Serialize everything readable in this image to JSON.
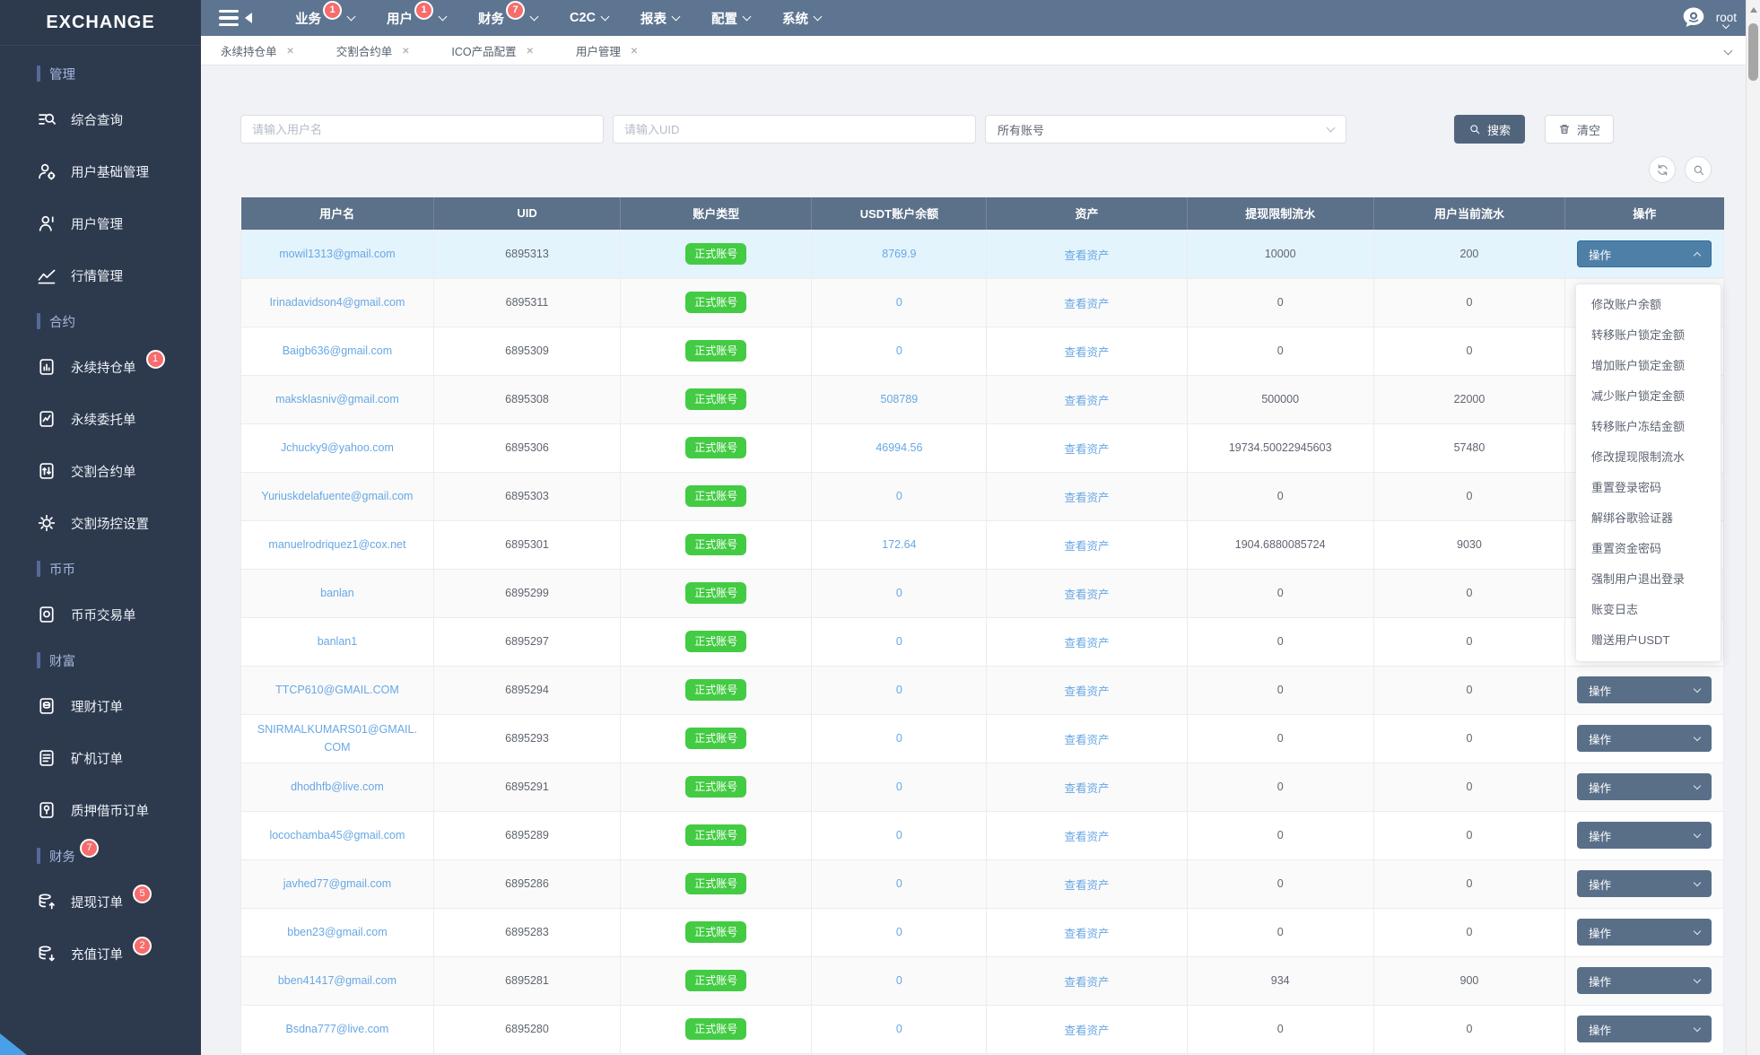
{
  "colors": {
    "sidebar_bg": "#2d3a4e",
    "topbar_bg": "#5d7591",
    "table_header_bg": "#5b7089",
    "badge_red": "#f76c6c",
    "success_green": "#43cb43",
    "link_blue": "#68a7e4",
    "row_highlight": "#e4f4fd",
    "dark_button": "#596f88",
    "open_button": "#4e7fa6"
  },
  "app": {
    "logo_text": "EXCHANGE",
    "username": "root"
  },
  "top_nav": {
    "items": [
      {
        "label": "业务",
        "badge": "1"
      },
      {
        "label": "用户",
        "badge": "1"
      },
      {
        "label": "财务",
        "badge": "7"
      },
      {
        "label": "C2C"
      },
      {
        "label": "报表"
      },
      {
        "label": "配置"
      },
      {
        "label": "系统"
      }
    ]
  },
  "sidebar": {
    "sections": [
      {
        "label": "管理",
        "items": [
          {
            "label": "综合查询",
            "icon": "search-list-icon"
          },
          {
            "label": "用户基础管理",
            "icon": "user-gear-icon"
          },
          {
            "label": "用户管理",
            "icon": "user-manage-icon"
          },
          {
            "label": "行情管理",
            "icon": "chart-line-icon"
          }
        ]
      },
      {
        "label": "合约",
        "items": [
          {
            "label": "永续持仓单",
            "icon": "doc-chart-icon",
            "badge": "1"
          },
          {
            "label": "永续委托单",
            "icon": "doc-trend-icon"
          },
          {
            "label": "交割合约单",
            "icon": "doc-transfer-icon"
          },
          {
            "label": "交割场控设置",
            "icon": "gear-arrows-icon"
          }
        ]
      },
      {
        "label": "币币",
        "items": [
          {
            "label": "币币交易单",
            "icon": "doc-coin-icon"
          }
        ]
      },
      {
        "label": "财富",
        "items": [
          {
            "label": "理财订单",
            "icon": "finance-doc-icon"
          },
          {
            "label": "矿机订单",
            "icon": "miner-doc-icon"
          },
          {
            "label": "质押借币订单",
            "icon": "pledge-doc-icon"
          }
        ]
      },
      {
        "label": "财务",
        "badge": "7",
        "items": [
          {
            "label": "提现订单",
            "icon": "withdraw-icon",
            "badge": "5"
          },
          {
            "label": "充值订单",
            "icon": "deposit-icon",
            "badge": "2"
          }
        ]
      }
    ]
  },
  "tabs": {
    "items": [
      {
        "label": "永续持仓单"
      },
      {
        "label": "交割合约单"
      },
      {
        "label": "ICO产品配置"
      },
      {
        "label": "用户管理"
      }
    ]
  },
  "filters": {
    "username_placeholder": "请输入用户名",
    "uid_placeholder": "请输入UID",
    "account_select_value": "所有账号",
    "search_label": "搜索",
    "clear_label": "清空"
  },
  "table": {
    "headers": [
      "用户名",
      "UID",
      "账户类型",
      "USDT账户余额",
      "资产",
      "提现限制流水",
      "用户当前流水",
      "操作"
    ],
    "account_type_label": "正式账号",
    "assets_link_label": "查看资产",
    "action_button_label": "操作",
    "rows": [
      {
        "username": "mowil1313@gmail.com",
        "uid": "6895313",
        "usdt_balance": "8769.9",
        "withdraw_limit_flow": "10000",
        "current_flow": "200",
        "highlighted": true,
        "action_open": true
      },
      {
        "username": "Irinadavidson4@gmail.com",
        "uid": "6895311",
        "usdt_balance": "0",
        "withdraw_limit_flow": "0",
        "current_flow": "0"
      },
      {
        "username": "Baigb636@gmail.com",
        "uid": "6895309",
        "usdt_balance": "0",
        "withdraw_limit_flow": "0",
        "current_flow": "0"
      },
      {
        "username": "maksklasniv@gmail.com",
        "uid": "6895308",
        "usdt_balance": "508789",
        "withdraw_limit_flow": "500000",
        "current_flow": "22000"
      },
      {
        "username": "Jchucky9@yahoo.com",
        "uid": "6895306",
        "usdt_balance": "46994.56",
        "withdraw_limit_flow": "19734.50022945603",
        "current_flow": "57480"
      },
      {
        "username": "Yuriuskdelafuente@gmail.com",
        "uid": "6895303",
        "usdt_balance": "0",
        "withdraw_limit_flow": "0",
        "current_flow": "0"
      },
      {
        "username": "manuelrodriquez1@cox.net",
        "uid": "6895301",
        "usdt_balance": "172.64",
        "withdraw_limit_flow": "1904.6880085724",
        "current_flow": "9030"
      },
      {
        "username": "banlan",
        "uid": "6895299",
        "usdt_balance": "0",
        "withdraw_limit_flow": "0",
        "current_flow": "0"
      },
      {
        "username": "banlan1",
        "uid": "6895297",
        "usdt_balance": "0",
        "withdraw_limit_flow": "0",
        "current_flow": "0"
      },
      {
        "username": "TTCP610@GMAIL.COM",
        "uid": "6895294",
        "usdt_balance": "0",
        "withdraw_limit_flow": "0",
        "current_flow": "0"
      },
      {
        "username": "SNIRMALKUMARS01@GMAIL.COM",
        "uid": "6895293",
        "usdt_balance": "0",
        "withdraw_limit_flow": "0",
        "current_flow": "0"
      },
      {
        "username": "dhodhfb@live.com",
        "uid": "6895291",
        "usdt_balance": "0",
        "withdraw_limit_flow": "0",
        "current_flow": "0"
      },
      {
        "username": "locochamba45@gmail.com",
        "uid": "6895289",
        "usdt_balance": "0",
        "withdraw_limit_flow": "0",
        "current_flow": "0"
      },
      {
        "username": "javhed77@gmail.com",
        "uid": "6895286",
        "usdt_balance": "0",
        "withdraw_limit_flow": "0",
        "current_flow": "0"
      },
      {
        "username": "bben23@gmail.com",
        "uid": "6895283",
        "usdt_balance": "0",
        "withdraw_limit_flow": "0",
        "current_flow": "0"
      },
      {
        "username": "bben41417@gmail.com",
        "uid": "6895281",
        "usdt_balance": "0",
        "withdraw_limit_flow": "934",
        "current_flow": "900"
      },
      {
        "username": "Bsdna777@live.com",
        "uid": "6895280",
        "usdt_balance": "0",
        "withdraw_limit_flow": "0",
        "current_flow": "0"
      }
    ]
  },
  "action_menu": {
    "items": [
      "修改账户余额",
      "转移账户锁定金额",
      "增加账户锁定金额",
      "减少账户锁定金额",
      "转移账户冻结金额",
      "修改提现限制流水",
      "重置登录密码",
      "解绑谷歌验证器",
      "重置资金密码",
      "强制用户退出登录",
      "账变日志",
      "赠送用户USDT"
    ]
  }
}
